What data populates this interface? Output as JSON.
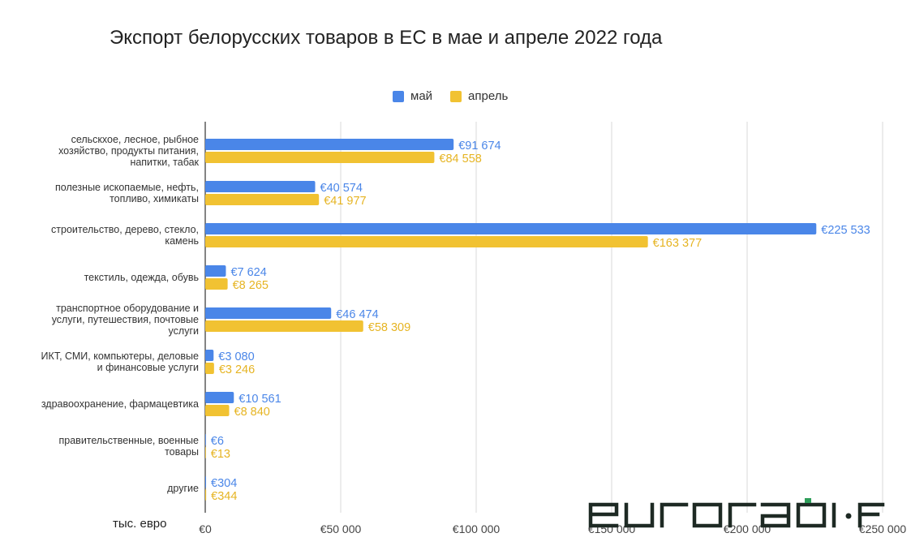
{
  "chart_data": {
    "type": "bar",
    "orientation": "horizontal",
    "title": "Экспорт белорусских товаров в ЕС в мае и апреле 2022 года",
    "unit_label": "тыс. евро",
    "categories": [
      [
        "сельскхое, лесное, рыбное",
        "хозяйство, продукты питания,",
        "напитки, табак"
      ],
      [
        "полезные ископаемые, нефть,",
        "топливо, химикаты"
      ],
      [
        "строительство, дерево, стекло,",
        "камень"
      ],
      [
        "текстиль, одежда, обувь"
      ],
      [
        "транспортное оборудование и",
        "услуги, путешествия, почтовые",
        "услуги"
      ],
      [
        "ИКТ, СМИ, компьютеры, деловые",
        "и финансовые услуги"
      ],
      [
        "здравоохранение, фармацевтика"
      ],
      [
        "правительственные, военные",
        "товары"
      ],
      [
        "другие"
      ]
    ],
    "series": [
      {
        "name": "май",
        "color": "#4a86e8",
        "values": [
          91674,
          40574,
          225533,
          7624,
          46474,
          3080,
          10561,
          6,
          304
        ],
        "labels": [
          "€91 674",
          "€40 574",
          "€225 533",
          "€7 624",
          "€46 474",
          "€3 080",
          "€10 561",
          "€6",
          "€304"
        ]
      },
      {
        "name": "апрель",
        "color": "#f1c232",
        "values": [
          84558,
          41977,
          163377,
          8265,
          58309,
          3246,
          8840,
          13,
          344
        ],
        "labels": [
          "€84 558",
          "€41 977",
          "€163 377",
          "€8 265",
          "€58 309",
          "€3 246",
          "€8 840",
          "€13",
          "€344"
        ]
      }
    ],
    "xlim": [
      0,
      250000
    ],
    "xticks": [
      0,
      50000,
      100000,
      150000,
      200000,
      250000
    ],
    "xtick_labels": [
      "€0",
      "€50 000",
      "€100 000",
      "€150 000",
      "€200 000",
      "€250 000"
    ],
    "grid": true,
    "legend_position": "top-center"
  },
  "watermark": {
    "text": "euroradio·fm",
    "color": "#1e2a24",
    "accent_color": "#2e9e5a"
  }
}
